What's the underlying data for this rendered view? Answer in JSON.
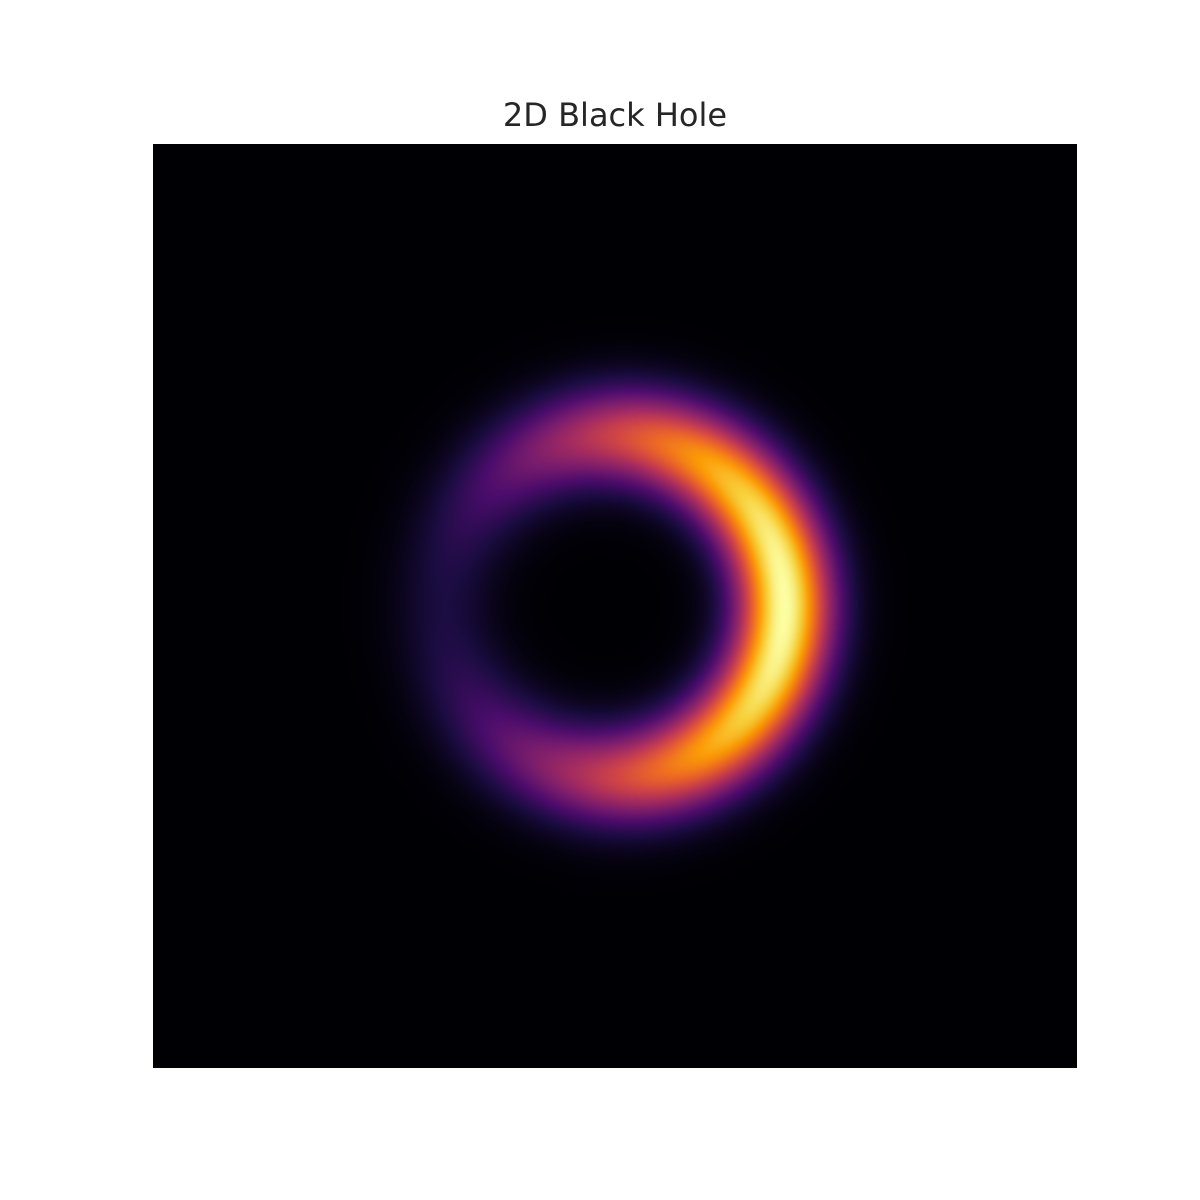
{
  "chart_data": {
    "type": "heatmap",
    "title": "2D Black Hole",
    "xlabel": "",
    "ylabel": "",
    "grid": false,
    "axes_visible": false,
    "colormap": "inferno",
    "colormap_stops": [
      "#000004",
      "#1b0c41",
      "#4a0c6b",
      "#781c6d",
      "#a52c60",
      "#cf4446",
      "#ed6925",
      "#fb9b06",
      "#f7d13d",
      "#fcffa4"
    ],
    "background_color": "#000004",
    "ring": {
      "center": [
        0.0,
        0.0
      ],
      "radius": 0.55,
      "width": 0.11,
      "brightness_asymmetry": 0.8,
      "brightest_side": "right"
    },
    "xlim": [
      -1.5,
      1.5
    ],
    "ylim": [
      -1.5,
      1.5
    ]
  }
}
